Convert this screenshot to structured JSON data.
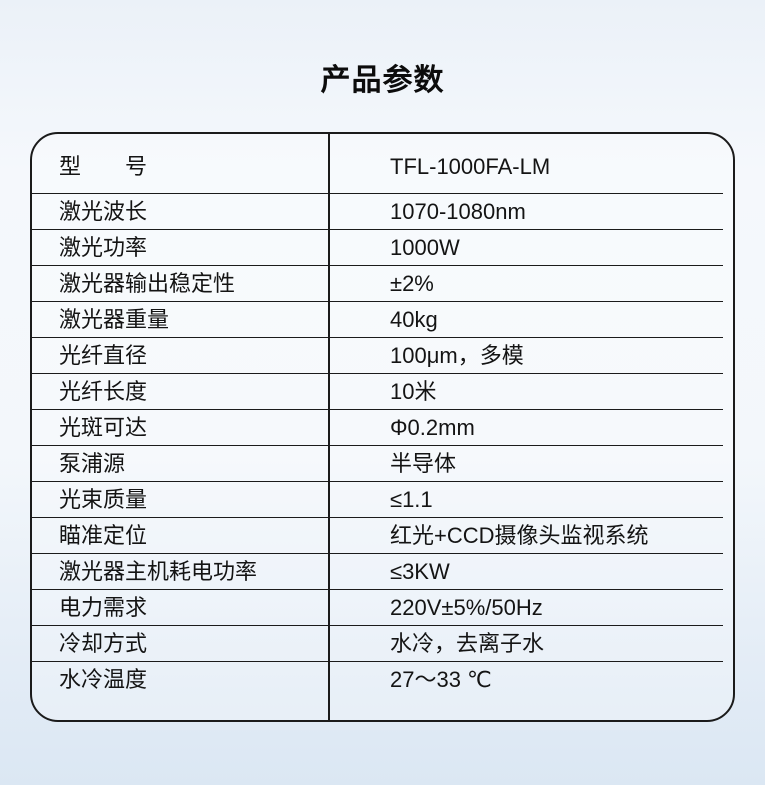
{
  "page": {
    "title": "产品参数"
  },
  "colors": {
    "text": "#141414",
    "table_border": "#1b1b1b",
    "background_top": "#ebf1f8",
    "background_bottom": "#dbe7f3"
  },
  "table": {
    "rows": [
      {
        "label": "型　　号",
        "value": "TFL-1000FA-LM"
      },
      {
        "label": "激光波长",
        "value": "1070-1080nm"
      },
      {
        "label": "激光功率",
        "value": "1000W"
      },
      {
        "label": "激光器输出稳定性",
        "value": "±2%"
      },
      {
        "label": "激光器重量",
        "value": "40kg"
      },
      {
        "label": "光纤直径",
        "value": "100μm，多模"
      },
      {
        "label": "光纤长度",
        "value": "10米"
      },
      {
        "label": "光斑可达",
        "value": "Φ0.2mm"
      },
      {
        "label": "泵浦源",
        "value": "半导体"
      },
      {
        "label": "光束质量",
        "value": "≤1.1"
      },
      {
        "label": "瞄准定位",
        "value": "红光+CCD摄像头监视系统"
      },
      {
        "label": "激光器主机耗电功率",
        "value": "≤3KW"
      },
      {
        "label": "电力需求",
        "value": "220V±5%/50Hz"
      },
      {
        "label": "冷却方式",
        "value": "水冷，去离子水"
      },
      {
        "label": "水冷温度",
        "value": "27～33 ℃"
      }
    ]
  }
}
